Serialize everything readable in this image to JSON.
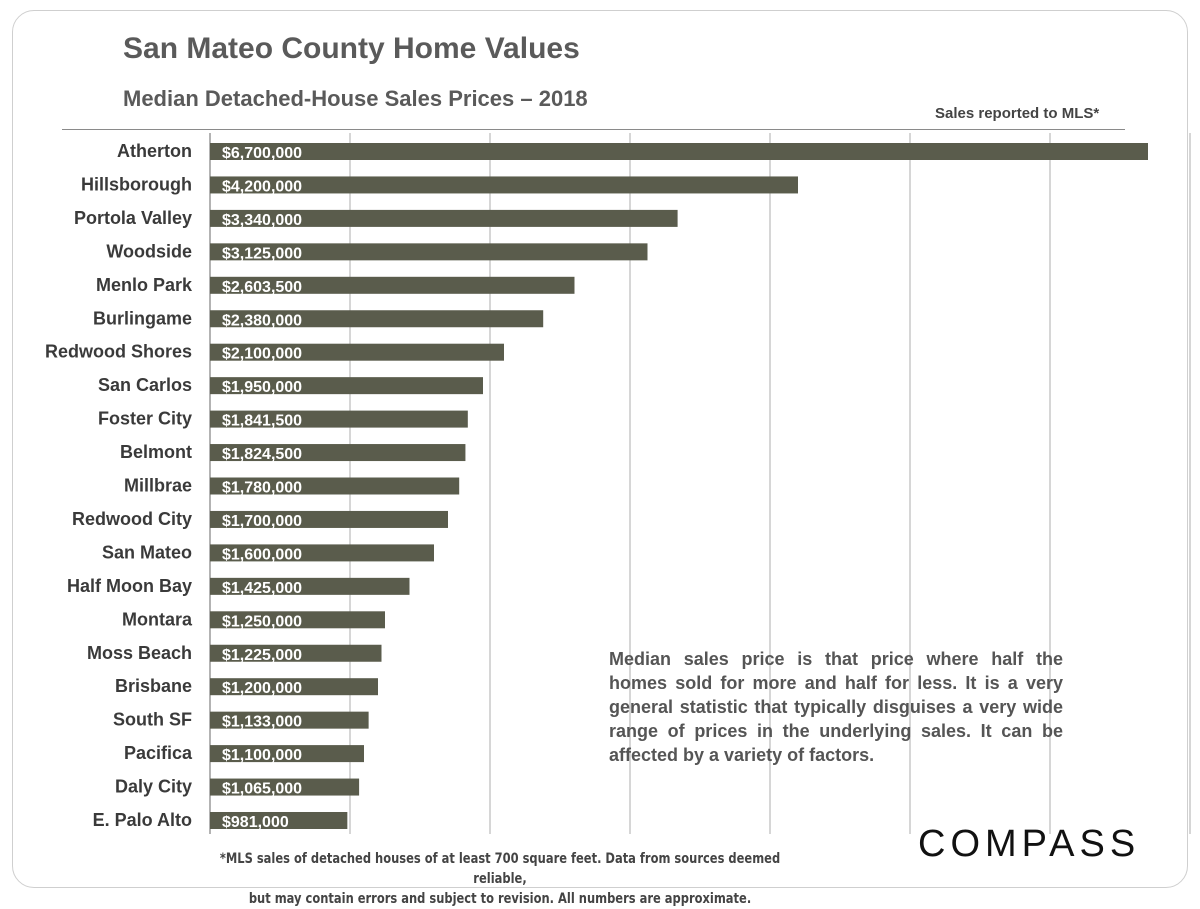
{
  "header": {
    "title": "San Mateo County Home Values",
    "subtitle": "Median Detached-House Sales Prices – 2018",
    "mls_note": "Sales reported to MLS*"
  },
  "annotation": "Median sales price is that price where half the homes sold for more and half for less. It is a very general statistic that typically disguises a very wide range of prices in the underlying sales. It can be affected by a variety of factors.",
  "footnote": {
    "line1": "*MLS sales of detached houses of at least 700 square feet. Data from sources deemed reliable,",
    "line2": "but may contain errors and subject to revision. All numbers are approximate."
  },
  "logo": "COMPASS",
  "colors": {
    "bar": "#5a5c4c",
    "bar_label": "#ffffff",
    "category_label": "#3a3a3a",
    "gridline": "#c8c8c8"
  },
  "chart_data": {
    "type": "bar",
    "orientation": "horizontal",
    "categories": [
      "Atherton",
      "Hillsborough",
      "Portola Valley",
      "Woodside",
      "Menlo Park",
      "Burlingame",
      "Redwood Shores",
      "San Carlos",
      "Foster City",
      "Belmont",
      "Millbrae",
      "Redwood City",
      "San Mateo",
      "Half Moon Bay",
      "Montara",
      "Moss Beach",
      "Brisbane",
      "South SF",
      "Pacifica",
      "Daly City",
      "E. Palo Alto"
    ],
    "values": [
      6700000,
      4200000,
      3340000,
      3125000,
      2603500,
      2380000,
      2100000,
      1950000,
      1841500,
      1824500,
      1780000,
      1700000,
      1600000,
      1425000,
      1250000,
      1225000,
      1200000,
      1133000,
      1100000,
      1065000,
      981000
    ],
    "labels": [
      "$6,700,000",
      "$4,200,000",
      "$3,340,000",
      "$3,125,000",
      "$2,603,500",
      "$2,380,000",
      "$2,100,000",
      "$1,950,000",
      "$1,841,500",
      "$1,824,500",
      "$1,780,000",
      "$1,700,000",
      "$1,600,000",
      "$1,425,000",
      "$1,250,000",
      "$1,225,000",
      "$1,200,000",
      "$1,133,000",
      "$1,100,000",
      "$1,065,000",
      "$981,000"
    ],
    "xlim": [
      0,
      7000000
    ],
    "gridline_step": 1000000,
    "grid": true,
    "legend": "none"
  }
}
